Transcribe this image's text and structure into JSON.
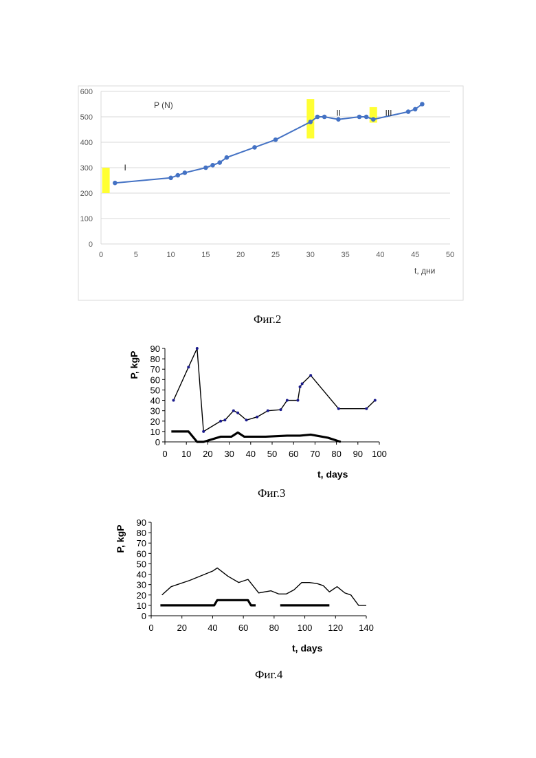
{
  "captions": {
    "fig2": "Фиг.2",
    "fig3": "Фиг.3",
    "fig4": "Фиг.4"
  },
  "chart_data": [
    {
      "type": "line",
      "title": "",
      "ylabel": "P (N)",
      "xlabel": "t, дни",
      "xlim": [
        0,
        50
      ],
      "ylim": [
        0,
        600
      ],
      "x_ticks": [
        0,
        5,
        10,
        15,
        20,
        25,
        30,
        35,
        40,
        45,
        50
      ],
      "y_ticks": [
        0,
        100,
        200,
        300,
        400,
        500,
        600
      ],
      "grid": true,
      "line_color": "#4472c4",
      "highlight_color": "#ffff33",
      "series": [
        {
          "x": [
            2,
            10,
            11,
            12,
            15,
            16,
            17,
            18,
            22,
            25,
            30,
            31,
            32,
            34,
            37,
            38,
            39,
            44,
            45,
            46
          ],
          "y": [
            240,
            260,
            270,
            280,
            300,
            310,
            320,
            340,
            380,
            410,
            480,
            500,
            500,
            490,
            500,
            500,
            490,
            520,
            530,
            550
          ]
        }
      ],
      "highlights": [
        {
          "x": 0.7,
          "y": [
            200,
            300
          ]
        },
        {
          "x": 30,
          "y": [
            415,
            570
          ]
        },
        {
          "x": 39,
          "y": [
            477,
            538
          ]
        }
      ],
      "annotations": [
        {
          "text": "I",
          "x": 3.3,
          "y": 300
        },
        {
          "text": "II",
          "x": 33.7,
          "y": 515
        },
        {
          "text": "III",
          "x": 40.7,
          "y": 515
        }
      ]
    },
    {
      "type": "line",
      "title": "",
      "ylabel": "P, kgP",
      "xlabel": "t, days",
      "xlim": [
        0,
        100
      ],
      "ylim": [
        0,
        90
      ],
      "x_ticks": [
        0,
        10,
        20,
        30,
        40,
        50,
        60,
        70,
        80,
        90,
        100
      ],
      "y_ticks": [
        0,
        10,
        20,
        30,
        40,
        50,
        60,
        70,
        80,
        90
      ],
      "grid": false,
      "series": [
        {
          "style": "thin-markers",
          "x": [
            4,
            11,
            15,
            18,
            26,
            28,
            32,
            34,
            38,
            43,
            48,
            54,
            57,
            62,
            63,
            64,
            68,
            81,
            94,
            98
          ],
          "y": [
            40,
            72,
            90,
            10,
            20,
            21,
            30,
            28,
            21,
            24,
            30,
            31,
            40,
            40,
            53,
            56,
            64,
            32,
            32,
            40
          ]
        },
        {
          "style": "thick",
          "x": [
            3,
            11,
            15,
            18,
            26,
            31,
            34,
            37,
            47,
            57,
            60,
            63,
            68,
            76,
            82
          ],
          "y": [
            10,
            10,
            0,
            0,
            5,
            5,
            9,
            5,
            5,
            6,
            6,
            6,
            7,
            4,
            0
          ]
        }
      ]
    },
    {
      "type": "line",
      "title": "",
      "ylabel": "P, kgP",
      "xlabel": "t, days",
      "xlim": [
        0,
        140
      ],
      "ylim": [
        0,
        90
      ],
      "x_ticks": [
        0,
        20,
        40,
        60,
        80,
        100,
        120,
        140
      ],
      "y_ticks": [
        0,
        10,
        20,
        30,
        40,
        50,
        60,
        70,
        80,
        90
      ],
      "grid": false,
      "series": [
        {
          "style": "thin",
          "x": [
            7,
            13,
            25,
            40,
            43,
            50,
            57,
            63,
            70,
            78,
            83,
            88,
            93,
            98,
            103,
            108,
            112,
            116,
            121,
            126,
            130,
            135,
            140
          ],
          "y": [
            20,
            28,
            34,
            43,
            46,
            38,
            32,
            35,
            22,
            24,
            21,
            21,
            25,
            32,
            32,
            31,
            29,
            23,
            28,
            22,
            20,
            10,
            10
          ]
        },
        {
          "style": "thick",
          "x": [
            6,
            41,
            43,
            63,
            65,
            68
          ],
          "y": [
            10,
            10,
            15,
            15,
            10,
            10
          ]
        },
        {
          "style": "thick",
          "x": [
            84,
            116
          ],
          "y": [
            10,
            10
          ]
        }
      ]
    }
  ]
}
